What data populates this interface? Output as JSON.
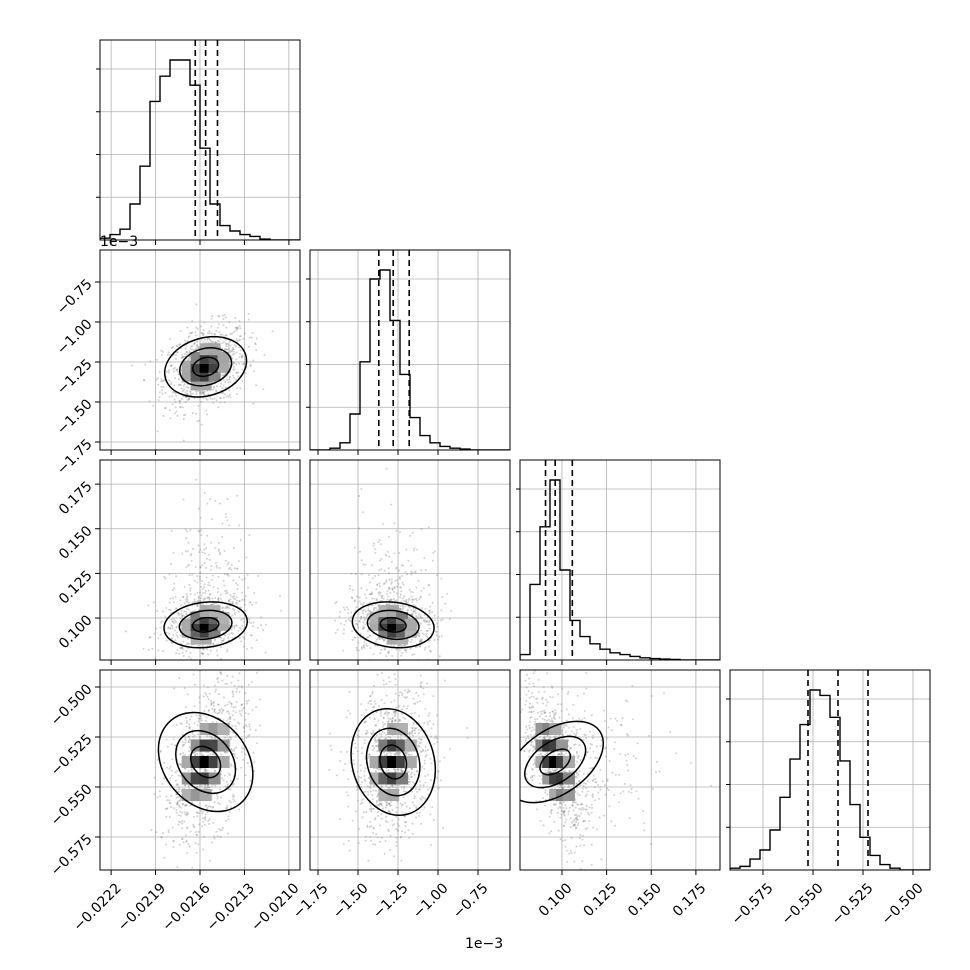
{
  "chart_data": {
    "type": "corner",
    "title": "",
    "n_params": 4,
    "grid": true,
    "colors": {
      "ink": "#000000",
      "grid": "#b0b0b0",
      "scatter": "#7f7f7f"
    },
    "params": [
      {
        "range": [
          -0.022275,
          -0.020925
        ],
        "ticks": [
          -0.0222,
          -0.0219,
          -0.0216,
          -0.0213,
          -0.021
        ],
        "tick_labels": [
          "−0.0222",
          "−0.0219",
          "−0.0216",
          "−0.0213",
          "−0.0210"
        ],
        "quantiles": [
          -0.021632,
          -0.021562,
          -0.021482
        ],
        "center": -0.021562,
        "sd": 0.00011,
        "hist": [
          0.01,
          0.03,
          0.06,
          0.2,
          0.41,
          0.77,
          0.91,
          1.0,
          1.0,
          0.86,
          0.51,
          0.2,
          0.08,
          0.05,
          0.03,
          0.02,
          0.005,
          0,
          0,
          0
        ]
      },
      {
        "range": [
          -1.8,
          -0.55
        ],
        "exponent_label": "1e−3",
        "ticks": [
          -1.75,
          -1.5,
          -1.25,
          -1.0,
          -0.75
        ],
        "tick_labels": [
          "−1.75",
          "−1.50",
          "−1.25",
          "−1.00",
          "−0.75"
        ],
        "quantiles": [
          -1.37,
          -1.28,
          -1.18
        ],
        "center": -1.28,
        "sd": 0.1,
        "hist": [
          0,
          0,
          0.01,
          0.04,
          0.2,
          0.49,
          0.95,
          1.0,
          0.72,
          0.42,
          0.18,
          0.08,
          0.04,
          0.02,
          0.01,
          0.005,
          0,
          0,
          0,
          0
        ]
      },
      {
        "range": [
          0.0765,
          0.1885
        ],
        "ticks": [
          0.1,
          0.125,
          0.15,
          0.175
        ],
        "tick_labels": [
          "0.100",
          "0.125",
          "0.150",
          "0.175"
        ],
        "quantiles": [
          0.0908,
          0.0962,
          0.1058
        ],
        "center": 0.0962,
        "sd": 0.007,
        "hist": [
          0.03,
          0.42,
          0.74,
          1.0,
          0.5,
          0.22,
          0.13,
          0.09,
          0.06,
          0.04,
          0.03,
          0.02,
          0.012,
          0.008,
          0.005,
          0.003,
          0,
          0,
          0,
          0
        ]
      },
      {
        "range": [
          -0.5915,
          -0.4915
        ],
        "ticks": [
          -0.575,
          -0.55,
          -0.525,
          -0.5
        ],
        "tick_labels": [
          "−0.575",
          "−0.550",
          "−0.525",
          "−0.500"
        ],
        "quantiles": [
          -0.5525,
          -0.5375,
          -0.5225
        ],
        "center": -0.5375,
        "sd": 0.015,
        "hist": [
          0.01,
          0.02,
          0.06,
          0.11,
          0.22,
          0.4,
          0.61,
          0.8,
          0.99,
          0.96,
          0.84,
          0.6,
          0.36,
          0.18,
          0.08,
          0.03,
          0.01,
          0,
          0,
          0
        ]
      }
    ],
    "pairs": [
      {
        "row": 1,
        "col": 0,
        "corr": 0.3
      },
      {
        "row": 2,
        "col": 0,
        "corr": 0.15
      },
      {
        "row": 2,
        "col": 1,
        "corr": -0.15
      },
      {
        "row": 3,
        "col": 0,
        "corr": 0.45
      },
      {
        "row": 3,
        "col": 1,
        "corr": 0.15
      },
      {
        "row": 3,
        "col": 2,
        "corr": -0.6
      }
    ],
    "contour_levels": [
      0.25,
      0.55,
      0.85
    ]
  }
}
